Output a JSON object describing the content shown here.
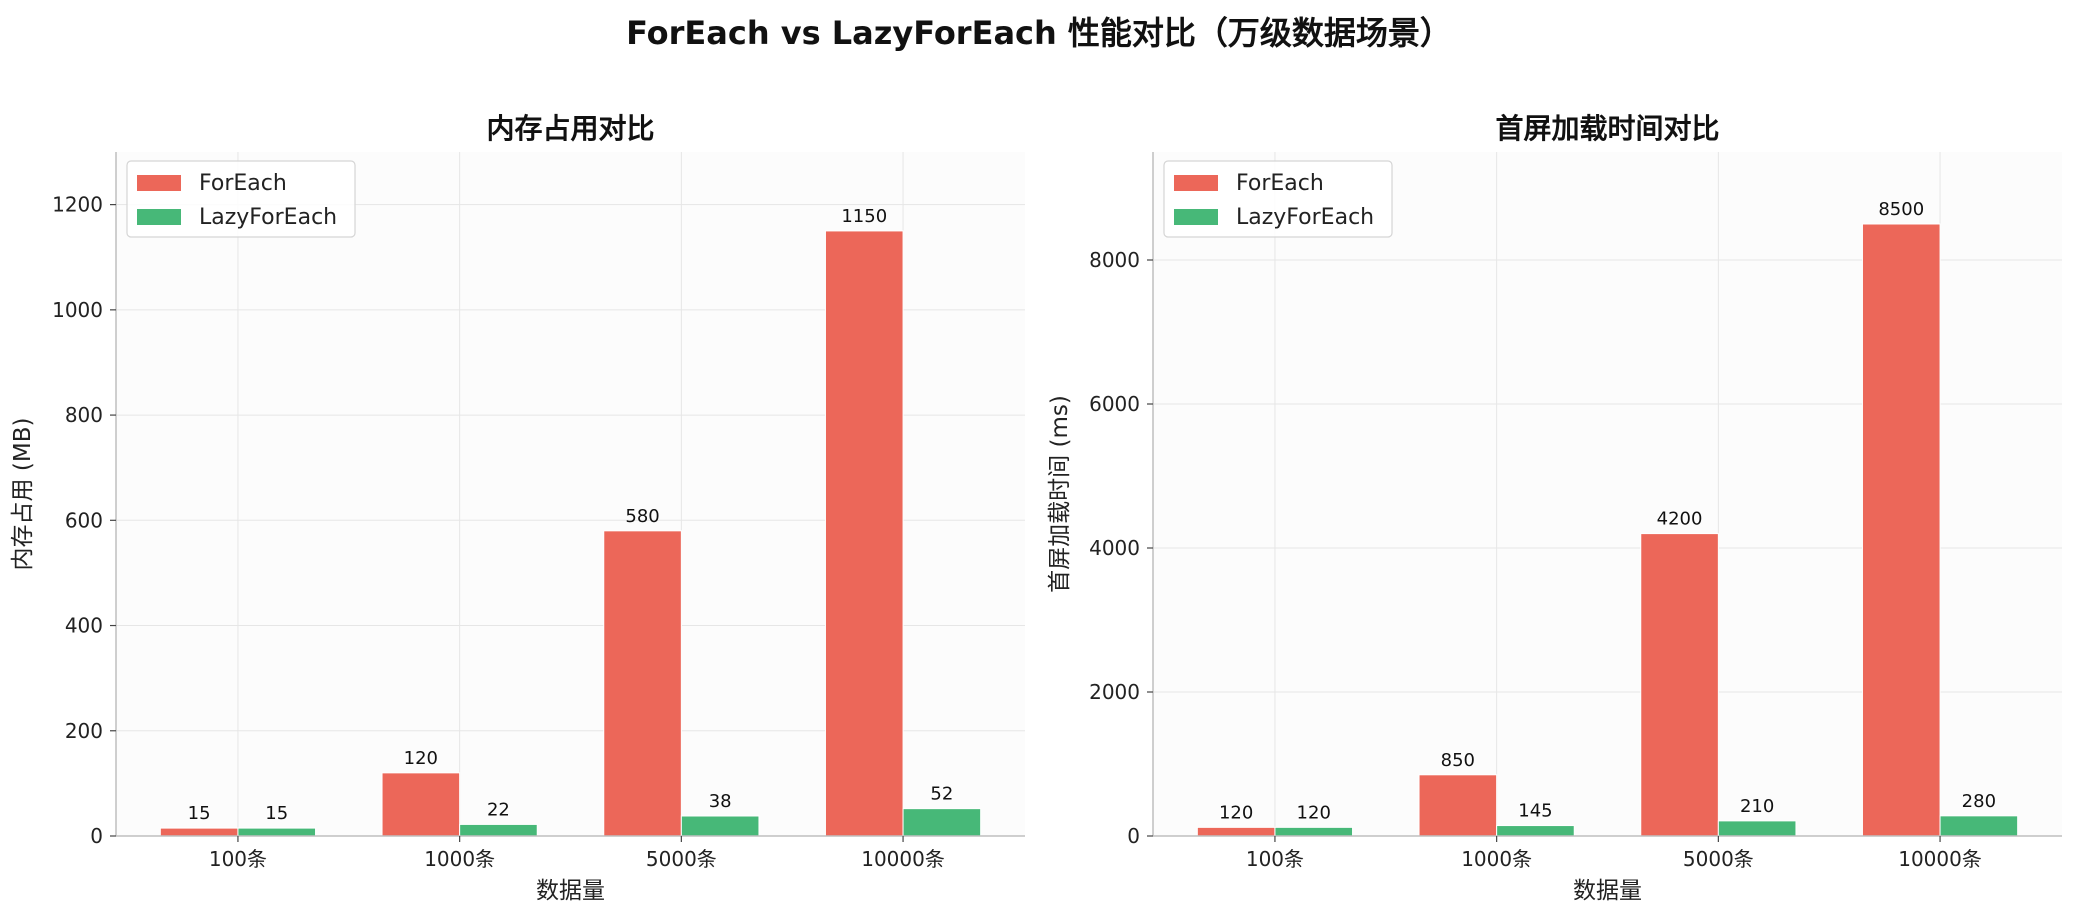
{
  "title": "ForEach vs LazyForEach 性能对比（万级数据场景）",
  "colors": {
    "ForEach": "#ec6759",
    "LazyForEach": "#47b878",
    "panel_bg": "#fcfcfc",
    "grid": "#e6e6e6"
  },
  "chart_data": [
    {
      "type": "bar",
      "title": "内存占用对比",
      "xlabel": "数据量",
      "ylabel": "内存占用 (MB)",
      "categories": [
        "100条",
        "1000条",
        "5000条",
        "10000条"
      ],
      "ylim": [
        0,
        1300
      ],
      "yticks": [
        0,
        200,
        400,
        600,
        800,
        1000,
        1200
      ],
      "grid": true,
      "legend_position": "top-left",
      "series": [
        {
          "name": "ForEach",
          "values": [
            15,
            120,
            580,
            1150
          ]
        },
        {
          "name": "LazyForEach",
          "values": [
            15,
            22,
            38,
            52
          ]
        }
      ]
    },
    {
      "type": "bar",
      "title": "首屏加载时间对比",
      "xlabel": "数据量",
      "ylabel": "首屏加载时间 (ms)",
      "categories": [
        "100条",
        "1000条",
        "5000条",
        "10000条"
      ],
      "ylim": [
        0,
        9500
      ],
      "yticks": [
        0,
        2000,
        4000,
        6000,
        8000
      ],
      "grid": true,
      "legend_position": "top-left",
      "series": [
        {
          "name": "ForEach",
          "values": [
            120,
            850,
            4200,
            8500
          ]
        },
        {
          "name": "LazyForEach",
          "values": [
            120,
            145,
            210,
            280
          ]
        }
      ]
    }
  ]
}
